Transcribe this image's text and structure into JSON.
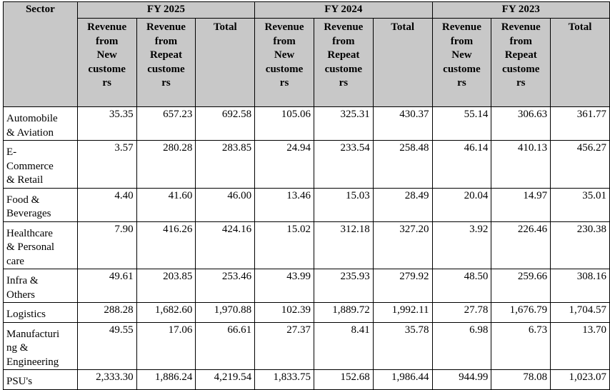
{
  "headers": {
    "sector": "Sector",
    "years": [
      "FY 2025",
      "FY 2024",
      "FY 2023"
    ],
    "new_lines": [
      "Revenue",
      "from",
      "New",
      "custome",
      "rs"
    ],
    "repeat_lines": [
      "Revenue",
      "from",
      "Repeat",
      "custome",
      "rs"
    ],
    "total": "Total"
  },
  "rows": [
    {
      "lines": [
        "Automobile",
        "& Aviation"
      ],
      "values": [
        "35.35",
        "657.23",
        "692.58",
        "105.06",
        "325.31",
        "430.37",
        "55.14",
        "306.63",
        "361.77"
      ]
    },
    {
      "lines": [
        "E-",
        "Commerce",
        "& Retail"
      ],
      "values": [
        "3.57",
        "280.28",
        "283.85",
        "24.94",
        "233.54",
        "258.48",
        "46.14",
        "410.13",
        "456.27"
      ]
    },
    {
      "lines": [
        "Food &",
        "Beverages"
      ],
      "values": [
        "4.40",
        "41.60",
        "46.00",
        "13.46",
        "15.03",
        "28.49",
        "20.04",
        "14.97",
        "35.01"
      ]
    },
    {
      "lines": [
        "Healthcare",
        "& Personal",
        "care"
      ],
      "values": [
        "7.90",
        "416.26",
        "424.16",
        "15.02",
        "312.18",
        "327.20",
        "3.92",
        "226.46",
        "230.38"
      ]
    },
    {
      "lines": [
        "Infra &",
        "Others"
      ],
      "values": [
        "49.61",
        "203.85",
        "253.46",
        "43.99",
        "235.93",
        "279.92",
        "48.50",
        "259.66",
        "308.16"
      ]
    },
    {
      "lines": [
        "Logistics"
      ],
      "values": [
        "288.28",
        "1,682.60",
        "1,970.88",
        "102.39",
        "1,889.72",
        "1,992.11",
        "27.78",
        "1,676.79",
        "1,704.57"
      ]
    },
    {
      "lines": [
        "Manufacturi",
        "ng &",
        "Engineering"
      ],
      "values": [
        "49.55",
        "17.06",
        "66.61",
        "27.37",
        "8.41",
        "35.78",
        "6.98",
        "6.73",
        "13.70"
      ]
    },
    {
      "lines": [
        "PSU's"
      ],
      "values": [
        "2,333.30",
        "1,886.24",
        "4,219.54",
        "1,833.75",
        "152.68",
        "1,986.44",
        "944.99",
        "78.08",
        "1,023.07"
      ]
    }
  ]
}
